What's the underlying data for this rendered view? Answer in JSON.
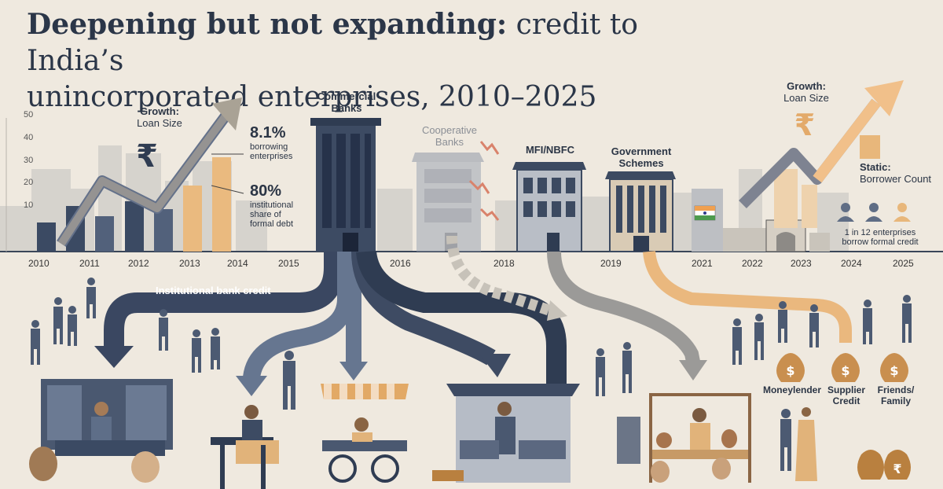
{
  "title": {
    "bold": "Deepening but not expanding:",
    "regular_1": "credit to India’s",
    "regular_2": "unincorporated enterprises, 2010–2025"
  },
  "left_chart": {
    "growth_label_1": "Growth:",
    "growth_label_2": "Loan Size",
    "y_ticks": [
      "50",
      "40",
      "30",
      "20",
      "10"
    ],
    "stat_1_value": "8.1%",
    "stat_1_caption": "borrowing enterprises",
    "stat_2_value": "80%",
    "stat_2_caption": "institutional share of formal debt"
  },
  "timeline_years": [
    "2010",
    "2011",
    "2012",
    "2013",
    "2014",
    "2015",
    "2016",
    "2018",
    "2019",
    "2021",
    "2022",
    "2023",
    "2024",
    "2025"
  ],
  "institutions": {
    "commercial": "Commercial Banks",
    "cooperative": "Cooperative Banks",
    "mfi": "MFI/NBFC",
    "government": "Government Schemes"
  },
  "flow_label": "Institutional bank credit",
  "right_panel": {
    "growth_label_1": "Growth:",
    "growth_label_2": "Loan Size",
    "static_1": "Static:",
    "static_2": "Borrower Count",
    "borrow_note": "1 in 12 enterprises borrow formal credit"
  },
  "informal_sources": [
    "Moneylender",
    "Supplier Credit",
    "Friends/ Family"
  ],
  "icons": {
    "rupee": "rupee-icon",
    "person": "person-icon",
    "money_bag": "money-bag-icon"
  },
  "colors": {
    "navy": "#2f3c52",
    "slate": "#667690",
    "tan": "#e8b77b",
    "grey": "#a7a8a6",
    "bg": "#efe9df"
  }
}
